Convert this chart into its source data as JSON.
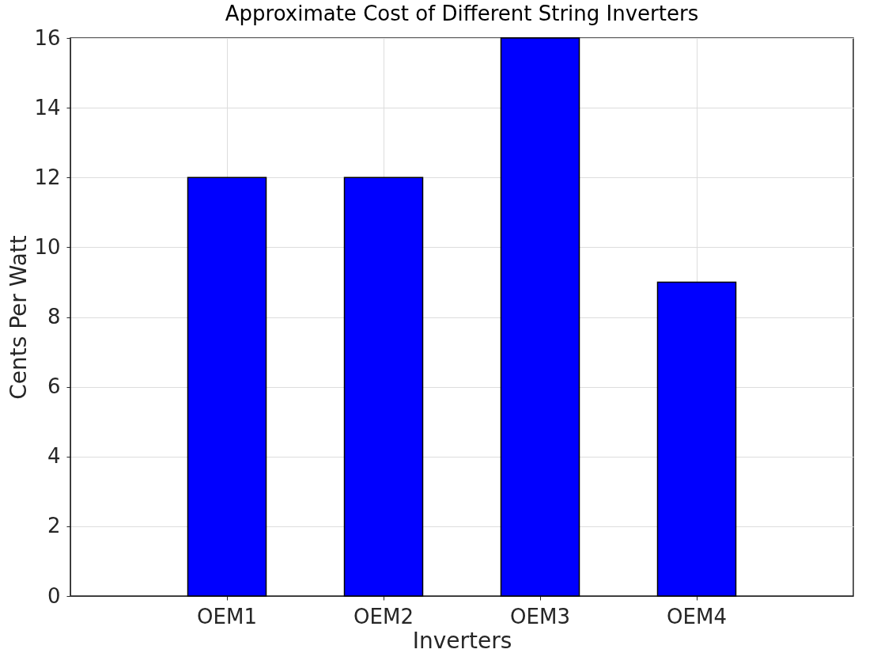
{
  "chart_data": {
    "type": "bar",
    "title": "Approximate Cost of Different String Inverters",
    "xlabel": "Inverters",
    "ylabel": "Cents Per Watt",
    "categories": [
      "OEM1",
      "OEM2",
      "OEM3",
      "OEM4"
    ],
    "values": [
      12,
      12,
      16,
      9
    ],
    "color": "#0000ff",
    "ylim": [
      0,
      16
    ],
    "yticks": [
      0,
      2,
      4,
      6,
      8,
      10,
      12,
      14,
      16
    ],
    "grid": true
  }
}
